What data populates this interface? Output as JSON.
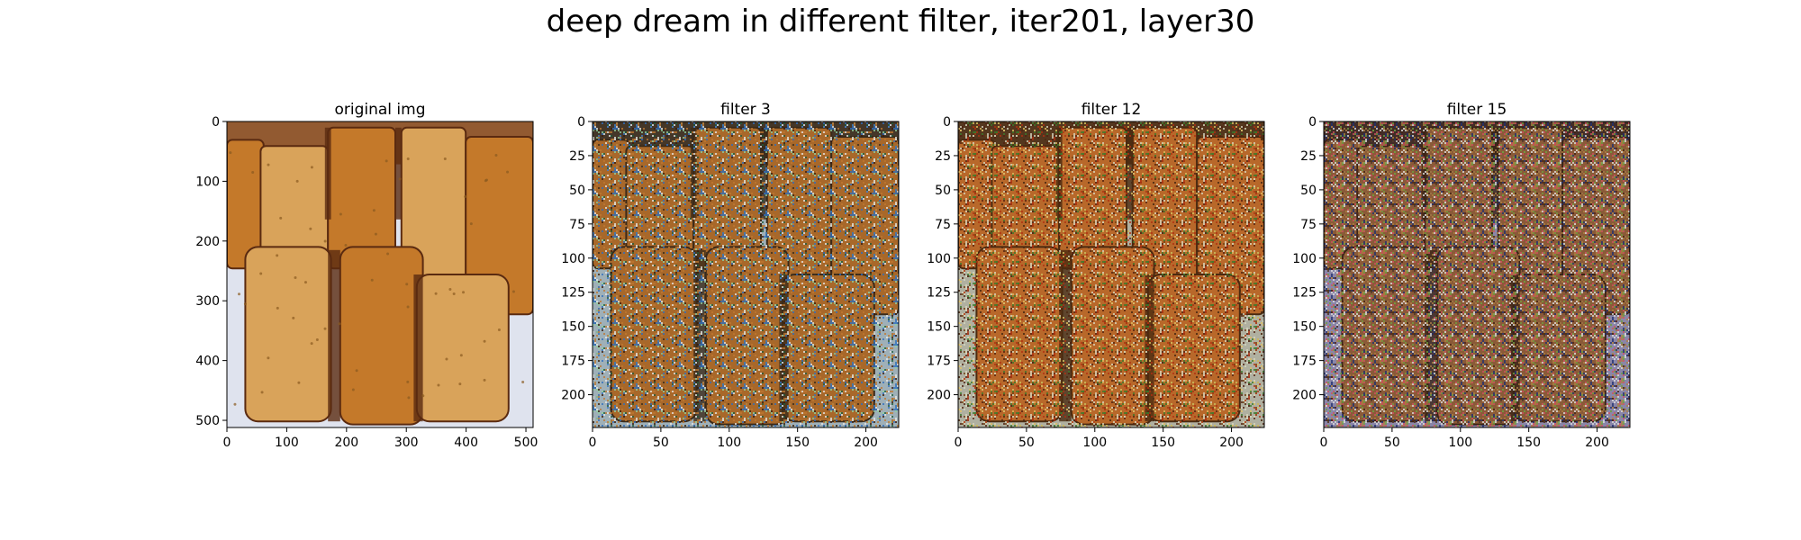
{
  "figure": {
    "title": "deep dream in different filter, iter201, layer30"
  },
  "colors": {
    "bread_light": "#d9a35a",
    "bread_mid": "#c4792a",
    "bread_dark": "#7a4218",
    "plate": "#dfe3ee",
    "crust": "#5a2a10"
  },
  "chart_data": [
    {
      "type": "image",
      "title": "original img",
      "content": "photo of sliced garlic bread loaves",
      "xlim": [
        0,
        512
      ],
      "ylim": [
        512,
        0
      ],
      "xticks": [
        0,
        100,
        200,
        300,
        400,
        500
      ],
      "yticks": [
        0,
        100,
        200,
        300,
        400,
        500
      ],
      "grid": false
    },
    {
      "type": "image",
      "title": "filter 3",
      "content": "deep dream output of sliced garlic bread",
      "xlim": [
        0,
        224
      ],
      "ylim": [
        224,
        0
      ],
      "xticks": [
        0,
        50,
        100,
        150,
        200
      ],
      "yticks": [
        0,
        25,
        50,
        75,
        100,
        125,
        150,
        175,
        200
      ],
      "grid": false
    },
    {
      "type": "image",
      "title": "filter 12",
      "content": "deep dream output of sliced garlic bread",
      "xlim": [
        0,
        224
      ],
      "ylim": [
        224,
        0
      ],
      "xticks": [
        0,
        50,
        100,
        150,
        200
      ],
      "yticks": [
        0,
        25,
        50,
        75,
        100,
        125,
        150,
        175,
        200
      ],
      "grid": false
    },
    {
      "type": "image",
      "title": "filter 15",
      "content": "deep dream output of sliced garlic bread",
      "xlim": [
        0,
        224
      ],
      "ylim": [
        224,
        0
      ],
      "xticks": [
        0,
        50,
        100,
        150,
        200
      ],
      "yticks": [
        0,
        25,
        50,
        75,
        100,
        125,
        150,
        175,
        200
      ],
      "grid": false
    }
  ]
}
